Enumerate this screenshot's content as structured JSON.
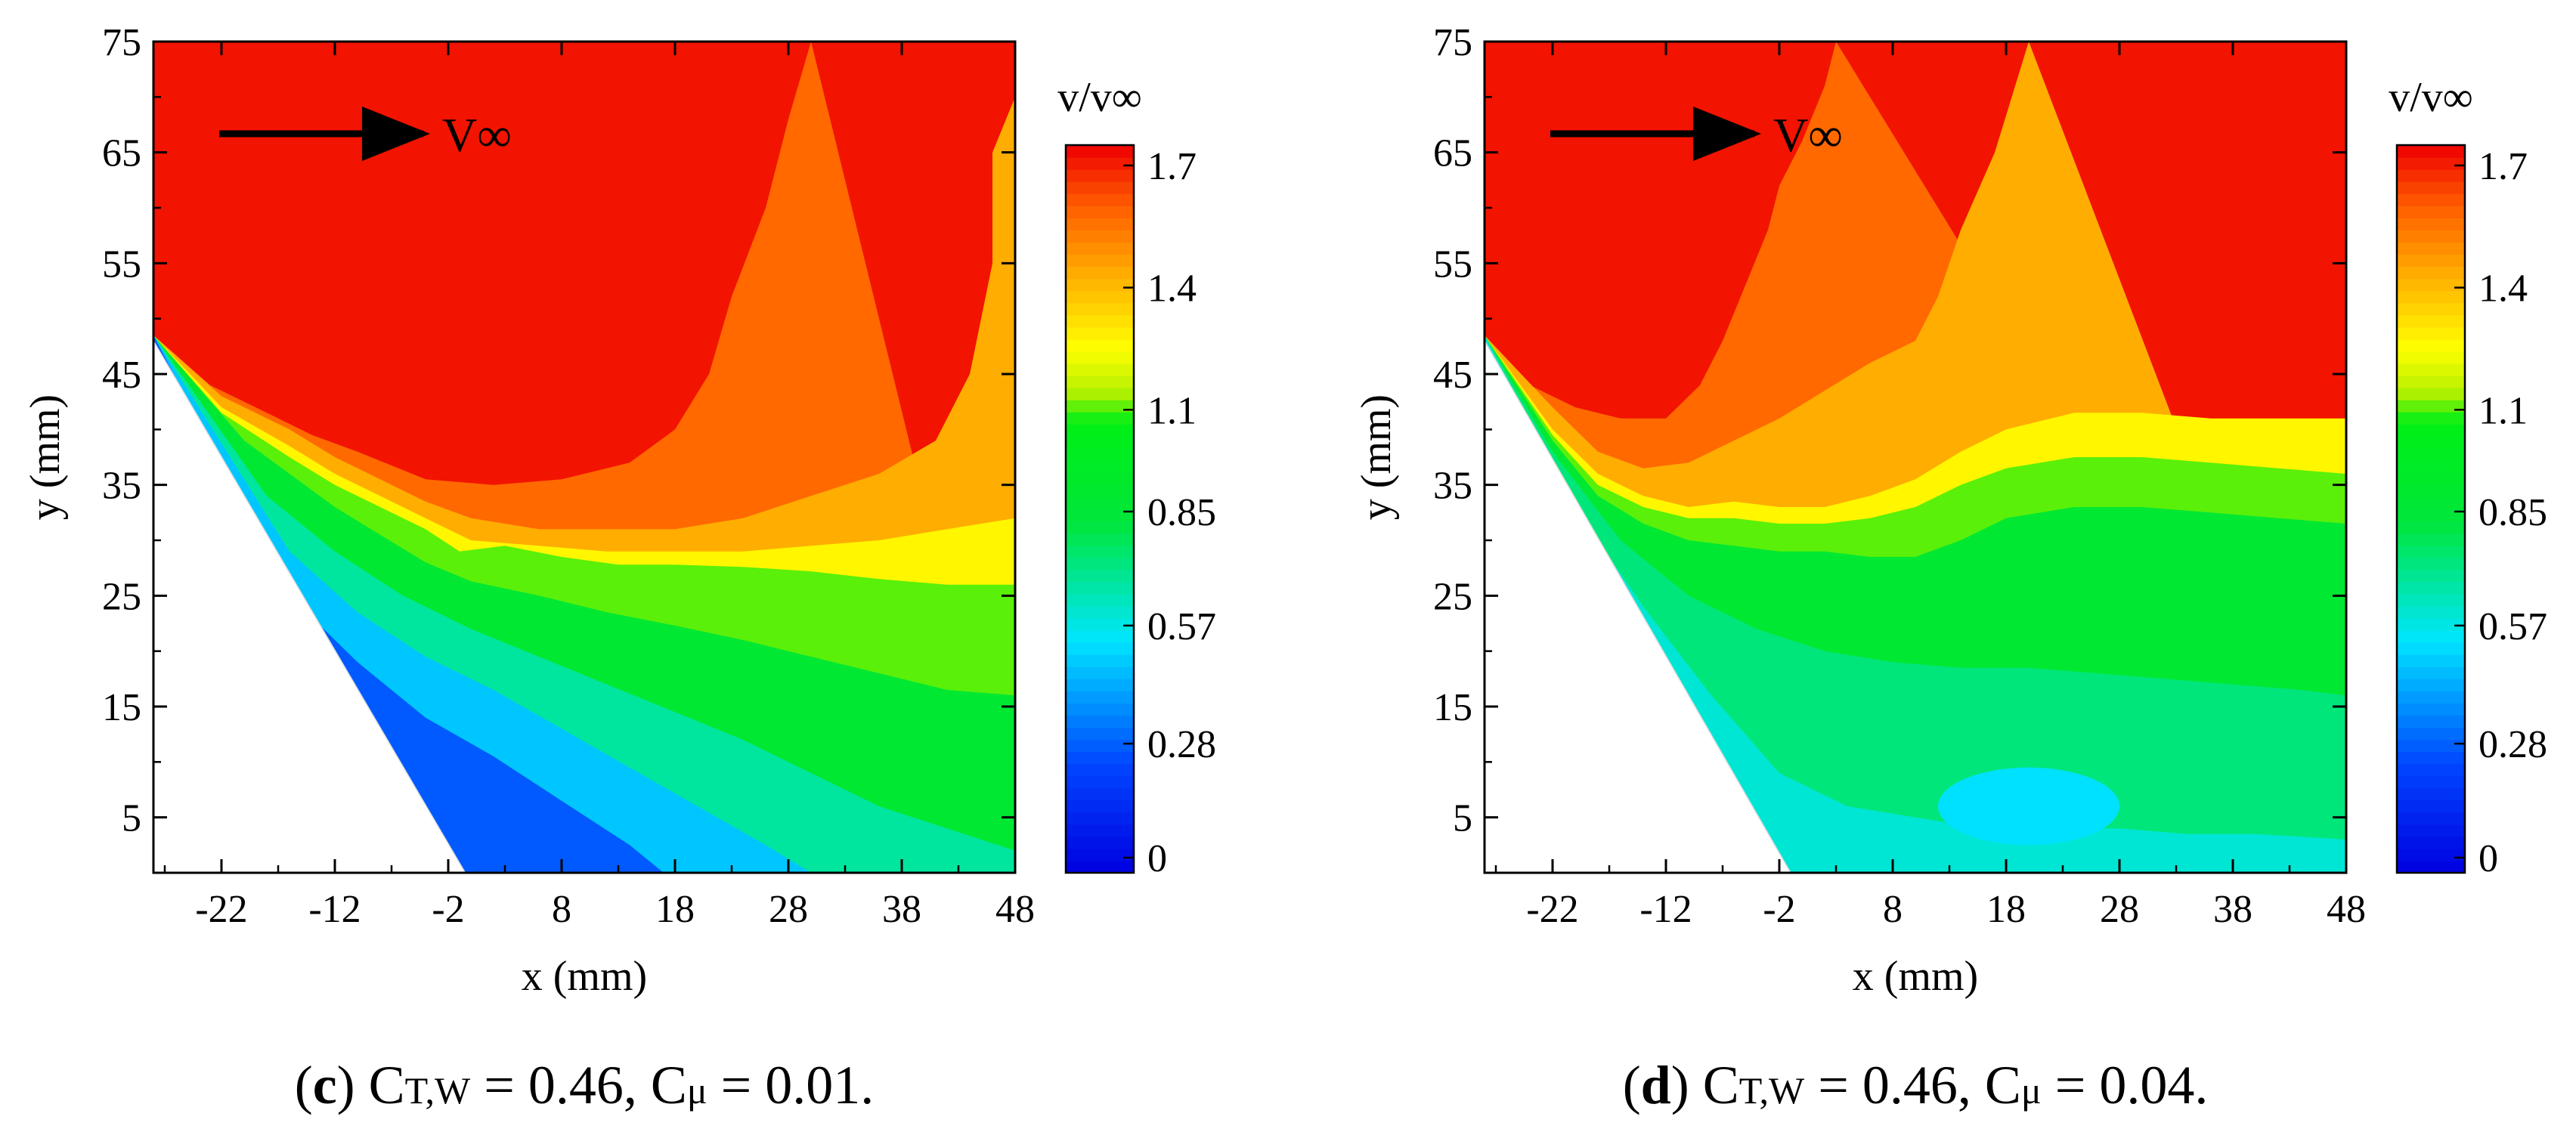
{
  "chart_data": [
    {
      "type": "heatmap",
      "panel": "c",
      "caption": {
        "label": "c",
        "cT": "T,W",
        "cT_value": "0.46",
        "cmu_value": "0.01"
      },
      "xlabel": "x (mm)",
      "ylabel": "y (mm)",
      "xlim": [
        -28,
        48
      ],
      "ylim": [
        0,
        75
      ],
      "xticks": [
        -22,
        -12,
        -2,
        8,
        18,
        28,
        38,
        48
      ],
      "yticks": [
        5,
        15,
        25,
        35,
        45,
        55,
        65,
        75
      ],
      "colorbar": {
        "label": "v/v∞",
        "min": 0,
        "max": 1.75,
        "ticks": [
          0,
          0.28,
          0.57,
          0.85,
          1.1,
          1.4,
          1.7
        ]
      },
      "annotation": {
        "text": "V∞"
      },
      "surface_line": [
        [
          -28,
          48
        ],
        [
          -0.5,
          0
        ]
      ],
      "bands": [
        {
          "value": 1.58,
          "boundary": [
            [
              -28,
              48.5
            ],
            [
              -23,
              44
            ],
            [
              -18,
              41.5
            ],
            [
              -14,
              39.5
            ],
            [
              -10,
              38
            ],
            [
              -4,
              35.5
            ],
            [
              2,
              35
            ],
            [
              8,
              35.5
            ],
            [
              14,
              37
            ],
            [
              18,
              40
            ],
            [
              21,
              45
            ],
            [
              23,
              52
            ],
            [
              26,
              60
            ],
            [
              28,
              68
            ],
            [
              30,
              75
            ]
          ]
        },
        {
          "value": 1.44,
          "boundary": [
            [
              -28,
              48.5
            ],
            [
              -22,
              43
            ],
            [
              -16,
              40
            ],
            [
              -12,
              37.5
            ],
            [
              -8,
              35.5
            ],
            [
              -4,
              33.5
            ],
            [
              0,
              32
            ],
            [
              6,
              31
            ],
            [
              12,
              31
            ],
            [
              18,
              31
            ],
            [
              24,
              32
            ],
            [
              30,
              34
            ],
            [
              36,
              36
            ],
            [
              41,
              39
            ],
            [
              44,
              45
            ],
            [
              46,
              55
            ],
            [
              46,
              65
            ],
            [
              48,
              70
            ]
          ]
        },
        {
          "value": 1.28,
          "boundary": [
            [
              -28,
              48.5
            ],
            [
              -22,
              42
            ],
            [
              -16,
              38.5
            ],
            [
              -12,
              36
            ],
            [
              -8,
              34
            ],
            [
              -4,
              32
            ],
            [
              0,
              30
            ],
            [
              6,
              29.5
            ],
            [
              12,
              29
            ],
            [
              18,
              29
            ],
            [
              24,
              29
            ],
            [
              30,
              29.5
            ],
            [
              36,
              30
            ],
            [
              42,
              31
            ],
            [
              48,
              32
            ]
          ]
        },
        {
          "value": 1.12,
          "boundary": [
            [
              -28,
              48.5
            ],
            [
              -22,
              41.5
            ],
            [
              -16,
              37.5
            ],
            [
              -12,
              35
            ],
            [
              -8,
              33
            ],
            [
              -4,
              31
            ],
            [
              -1,
              29
            ],
            [
              3,
              29.5
            ],
            [
              8,
              28.5
            ],
            [
              13,
              27.8
            ],
            [
              18,
              27.8
            ],
            [
              24,
              27.6
            ],
            [
              30,
              27.2
            ],
            [
              36,
              26.5
            ],
            [
              42,
              26
            ],
            [
              48,
              26
            ]
          ]
        },
        {
          "value": 0.9,
          "boundary": [
            [
              -28,
              48.5
            ],
            [
              -20,
              39
            ],
            [
              -16,
              36
            ],
            [
              -12,
              33
            ],
            [
              -8,
              30.5
            ],
            [
              -4,
              28
            ],
            [
              0,
              26.3
            ],
            [
              6,
              25
            ],
            [
              12,
              23.5
            ],
            [
              18,
              22.3
            ],
            [
              24,
              21
            ],
            [
              30,
              19.5
            ],
            [
              36,
              18
            ],
            [
              42,
              16.5
            ],
            [
              48,
              16
            ]
          ]
        },
        {
          "value": 0.7,
          "boundary": [
            [
              -28,
              48.5
            ],
            [
              -18,
              34
            ],
            [
              -12,
              29
            ],
            [
              -6,
              25
            ],
            [
              0,
              22
            ],
            [
              6,
              19.5
            ],
            [
              12,
              17
            ],
            [
              18,
              14.5
            ],
            [
              24,
              12
            ],
            [
              30,
              9
            ],
            [
              36,
              6
            ],
            [
              42,
              4
            ],
            [
              48,
              2
            ]
          ]
        },
        {
          "value": 0.5,
          "boundary": [
            [
              -28,
              48.5
            ],
            [
              -16,
              29
            ],
            [
              -10,
              23.5
            ],
            [
              -4,
              19.5
            ],
            [
              2,
              16.5
            ],
            [
              8,
              13
            ],
            [
              14,
              9.5
            ],
            [
              20,
              6
            ],
            [
              26,
              2.5
            ],
            [
              30,
              0
            ]
          ]
        },
        {
          "value": 0.3,
          "boundary": [
            [
              -28,
              48.5
            ],
            [
              -16,
              25
            ],
            [
              -10,
              19
            ],
            [
              -4,
              14
            ],
            [
              2,
              10.5
            ],
            [
              8,
              6.5
            ],
            [
              14,
              2.5
            ],
            [
              17,
              0
            ]
          ]
        }
      ],
      "blobs": []
    },
    {
      "type": "heatmap",
      "panel": "d",
      "caption": {
        "label": "d",
        "cT": "T,W",
        "cT_value": "0.46",
        "cmu_value": "0.04"
      },
      "xlabel": "x (mm)",
      "ylabel": "y (mm)",
      "xlim": [
        -28,
        48
      ],
      "ylim": [
        0,
        75
      ],
      "xticks": [
        -22,
        -12,
        -2,
        8,
        18,
        28,
        38,
        48
      ],
      "yticks": [
        5,
        15,
        25,
        35,
        45,
        55,
        65,
        75
      ],
      "colorbar": {
        "label": "v/v∞",
        "min": 0,
        "max": 1.75,
        "ticks": [
          0,
          0.28,
          0.57,
          0.85,
          1.1,
          1.4,
          1.7
        ]
      },
      "annotation": {
        "text": "V∞"
      },
      "surface_line": [
        [
          -28,
          48
        ],
        [
          -1,
          0
        ]
      ],
      "bands": [
        {
          "value": 1.58,
          "boundary": [
            [
              -28,
              48.5
            ],
            [
              -24,
              44
            ],
            [
              -20,
              42
            ],
            [
              -16,
              41
            ],
            [
              -12,
              41
            ],
            [
              -9,
              44
            ],
            [
              -7,
              48
            ],
            [
              -5,
              53
            ],
            [
              -3,
              58
            ],
            [
              -2,
              62
            ],
            [
              0,
              66
            ],
            [
              2,
              71
            ],
            [
              3,
              75
            ]
          ]
        },
        {
          "value": 1.44,
          "boundary": [
            [
              -28,
              48.5
            ],
            [
              -22,
              42
            ],
            [
              -18,
              38
            ],
            [
              -14,
              36.5
            ],
            [
              -10,
              37
            ],
            [
              -6,
              39
            ],
            [
              -2,
              41
            ],
            [
              2,
              43.5
            ],
            [
              6,
              46
            ],
            [
              10,
              48
            ],
            [
              12,
              52
            ],
            [
              14,
              58
            ],
            [
              17,
              65
            ],
            [
              20,
              75
            ]
          ]
        },
        {
          "value": 1.28,
          "boundary": [
            [
              -28,
              48.5
            ],
            [
              -22,
              40
            ],
            [
              -18,
              36
            ],
            [
              -14,
              34
            ],
            [
              -10,
              33
            ],
            [
              -6,
              33.5
            ],
            [
              -2,
              33
            ],
            [
              2,
              33
            ],
            [
              6,
              34
            ],
            [
              10,
              35.5
            ],
            [
              14,
              38
            ],
            [
              18,
              40
            ],
            [
              24,
              41.5
            ],
            [
              30,
              41.5
            ],
            [
              36,
              41
            ],
            [
              42,
              41
            ],
            [
              48,
              41
            ]
          ]
        },
        {
          "value": 1.12,
          "boundary": [
            [
              -28,
              48.5
            ],
            [
              -22,
              39.5
            ],
            [
              -18,
              35
            ],
            [
              -14,
              33
            ],
            [
              -10,
              32
            ],
            [
              -6,
              32
            ],
            [
              -2,
              31.5
            ],
            [
              2,
              31.5
            ],
            [
              6,
              32
            ],
            [
              10,
              33
            ],
            [
              14,
              35
            ],
            [
              18,
              36.5
            ],
            [
              24,
              37.5
            ],
            [
              30,
              37.5
            ],
            [
              36,
              37
            ],
            [
              42,
              36.5
            ],
            [
              48,
              36
            ]
          ]
        },
        {
          "value": 0.9,
          "boundary": [
            [
              -28,
              48.5
            ],
            [
              -22,
              39
            ],
            [
              -18,
              34
            ],
            [
              -14,
              31.5
            ],
            [
              -10,
              30
            ],
            [
              -6,
              29.5
            ],
            [
              -2,
              29
            ],
            [
              2,
              29
            ],
            [
              6,
              28.5
            ],
            [
              10,
              28.5
            ],
            [
              14,
              30
            ],
            [
              18,
              32
            ],
            [
              24,
              33
            ],
            [
              30,
              33
            ],
            [
              36,
              32.5
            ],
            [
              42,
              32
            ],
            [
              48,
              31.5
            ]
          ]
        },
        {
          "value": 0.75,
          "boundary": [
            [
              -28,
              48.5
            ],
            [
              -22,
              38
            ],
            [
              -16,
              30
            ],
            [
              -10,
              25
            ],
            [
              -4,
              22
            ],
            [
              2,
              20
            ],
            [
              8,
              19
            ],
            [
              14,
              18.5
            ],
            [
              20,
              18.5
            ],
            [
              26,
              18
            ],
            [
              32,
              17.5
            ],
            [
              38,
              17
            ],
            [
              44,
              16.5
            ],
            [
              48,
              16
            ]
          ]
        },
        {
          "value": 0.62,
          "boundary": [
            [
              -28,
              48.5
            ],
            [
              -20,
              33
            ],
            [
              -14,
              24
            ],
            [
              -8,
              16
            ],
            [
              -2,
              9
            ],
            [
              4,
              6
            ],
            [
              10,
              5
            ],
            [
              16,
              4
            ],
            [
              22,
              4
            ],
            [
              28,
              4
            ],
            [
              34,
              3.5
            ],
            [
              40,
              3.5
            ],
            [
              48,
              3
            ]
          ]
        }
      ],
      "blobs": [
        {
          "value": 0.55,
          "cx": 20,
          "cy": 6,
          "rx": 8,
          "ry": 3.5
        }
      ]
    }
  ]
}
